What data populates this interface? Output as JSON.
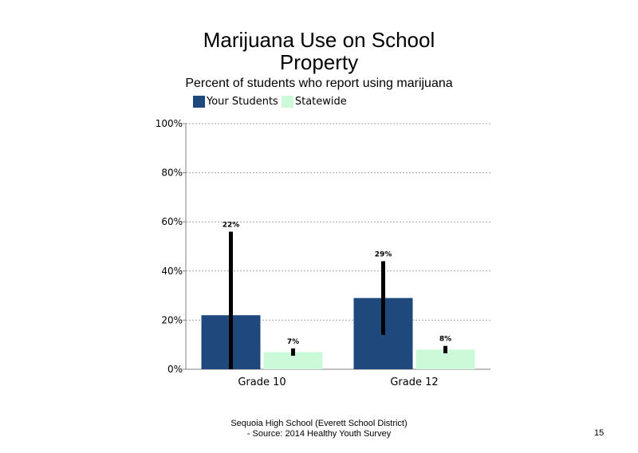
{
  "chart_data": {
    "type": "bar",
    "title_line1": "Marijuana Use on School",
    "title_line2": "Property",
    "subtitle": "Percent of students who report using marijuana",
    "categories": [
      "Grade 10",
      "Grade 12"
    ],
    "series": [
      {
        "name": "Your Students",
        "color": "#1f497d",
        "values": [
          22,
          29
        ],
        "labels": [
          "22%",
          "29%"
        ],
        "error_low": [
          0,
          14
        ],
        "error_high": [
          56,
          44
        ]
      },
      {
        "name": "Statewide",
        "color": "#ccfad9",
        "values": [
          7,
          8
        ],
        "labels": [
          "7%",
          "8%"
        ],
        "error_low": [
          5.5,
          6.5
        ],
        "error_high": [
          8.5,
          9.5
        ]
      }
    ],
    "y_ticks": [
      "0%",
      "20%",
      "40%",
      "60%",
      "80%",
      "100%"
    ],
    "y_tick_values": [
      0,
      20,
      40,
      60,
      80,
      100
    ],
    "ylim": [
      0,
      100
    ],
    "grid": true,
    "legend_position": "top"
  },
  "footer": {
    "line1": "Sequoia High School (Everett School District)",
    "line2": "- Source: 2014 Healthy Youth Survey"
  },
  "page_number": "15"
}
